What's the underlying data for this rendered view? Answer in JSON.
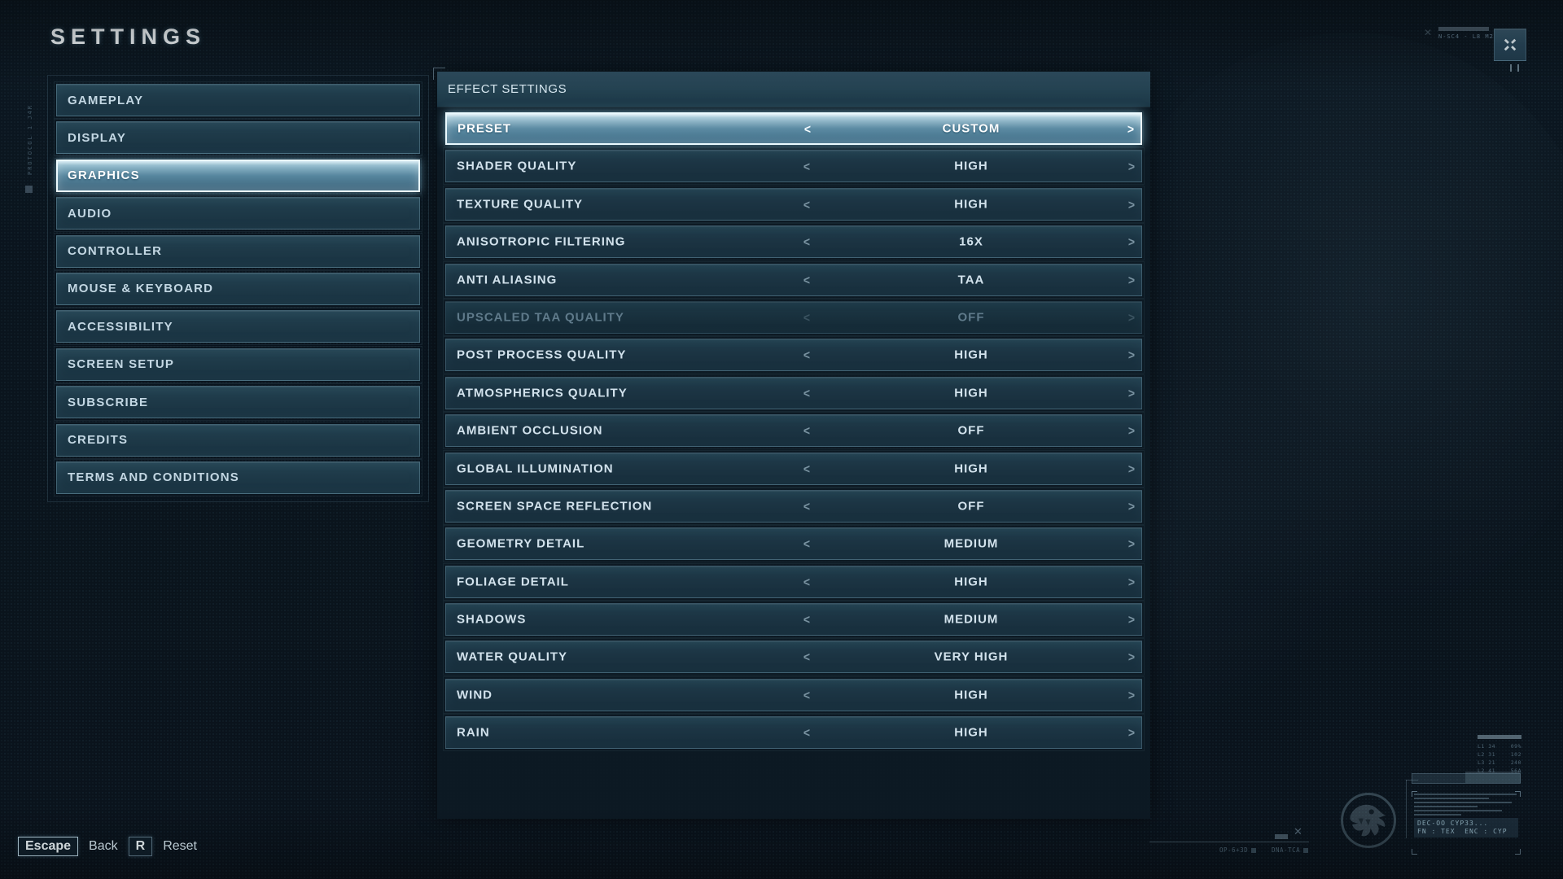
{
  "title": "SETTINGS",
  "sidebar": {
    "items": [
      {
        "label": "GAMEPLAY",
        "selected": false
      },
      {
        "label": "DISPLAY",
        "selected": false
      },
      {
        "label": "GRAPHICS",
        "selected": true
      },
      {
        "label": "AUDIO",
        "selected": false
      },
      {
        "label": "CONTROLLER",
        "selected": false
      },
      {
        "label": "MOUSE & KEYBOARD",
        "selected": false
      },
      {
        "label": "ACCESSIBILITY",
        "selected": false
      },
      {
        "label": "SCREEN SETUP",
        "selected": false
      },
      {
        "label": "SUBSCRIBE",
        "selected": false
      },
      {
        "label": "CREDITS",
        "selected": false
      },
      {
        "label": "TERMS AND CONDITIONS",
        "selected": false
      }
    ]
  },
  "panel": {
    "header": "EFFECT SETTINGS",
    "chevron_left": "<",
    "chevron_right": ">",
    "rows": [
      {
        "label": "PRESET",
        "value": "CUSTOM",
        "state": "selected"
      },
      {
        "label": "SHADER QUALITY",
        "value": "HIGH",
        "state": "normal"
      },
      {
        "label": "TEXTURE QUALITY",
        "value": "HIGH",
        "state": "normal"
      },
      {
        "label": "ANISOTROPIC FILTERING",
        "value": "16X",
        "state": "normal"
      },
      {
        "label": "ANTI ALIASING",
        "value": "TAA",
        "state": "normal"
      },
      {
        "label": "UPSCALED TAA QUALITY",
        "value": "OFF",
        "state": "disabled"
      },
      {
        "label": "POST PROCESS QUALITY",
        "value": "HIGH",
        "state": "normal"
      },
      {
        "label": "ATMOSPHERICS QUALITY",
        "value": "HIGH",
        "state": "normal"
      },
      {
        "label": "AMBIENT OCCLUSION",
        "value": "OFF",
        "state": "normal"
      },
      {
        "label": "GLOBAL ILLUMINATION",
        "value": "HIGH",
        "state": "normal"
      },
      {
        "label": "SCREEN SPACE REFLECTION",
        "value": "OFF",
        "state": "normal"
      },
      {
        "label": "GEOMETRY DETAIL",
        "value": "MEDIUM",
        "state": "normal"
      },
      {
        "label": "FOLIAGE DETAIL",
        "value": "HIGH",
        "state": "normal"
      },
      {
        "label": "SHADOWS",
        "value": "MEDIUM",
        "state": "normal"
      },
      {
        "label": "WATER QUALITY",
        "value": "VERY HIGH",
        "state": "normal"
      },
      {
        "label": "WIND",
        "value": "HIGH",
        "state": "normal"
      },
      {
        "label": "RAIN",
        "value": "HIGH",
        "state": "normal"
      }
    ]
  },
  "footer": {
    "escape_key": "Escape",
    "back_label": "Back",
    "reset_key": "R",
    "reset_label": "Reset"
  },
  "hud": {
    "top_right_code": "N-SC4 - L8 M2G4",
    "stats_rows": [
      [
        "L1 34",
        "09%"
      ],
      [
        "L2 31",
        "102"
      ],
      [
        "L3 21",
        "240"
      ],
      [
        "L2 41",
        "56A"
      ]
    ],
    "bottom_labels": [
      "OP-6+3D",
      "DNA-TCA"
    ],
    "decoder_line1": "DEC-OO CYP33...",
    "decoder_line2": "FN : TEX  ENC : CYP",
    "protocol_text": "PROTOCOL 1 J4R"
  },
  "colors": {
    "background": "#0a141d",
    "row_text": "#d2e2ec",
    "selected_fill_top": "#e2f2f8",
    "selected_border": "#eafaff",
    "disabled_text": "#5f7a8a",
    "accent_glow": "#96dcf5"
  }
}
